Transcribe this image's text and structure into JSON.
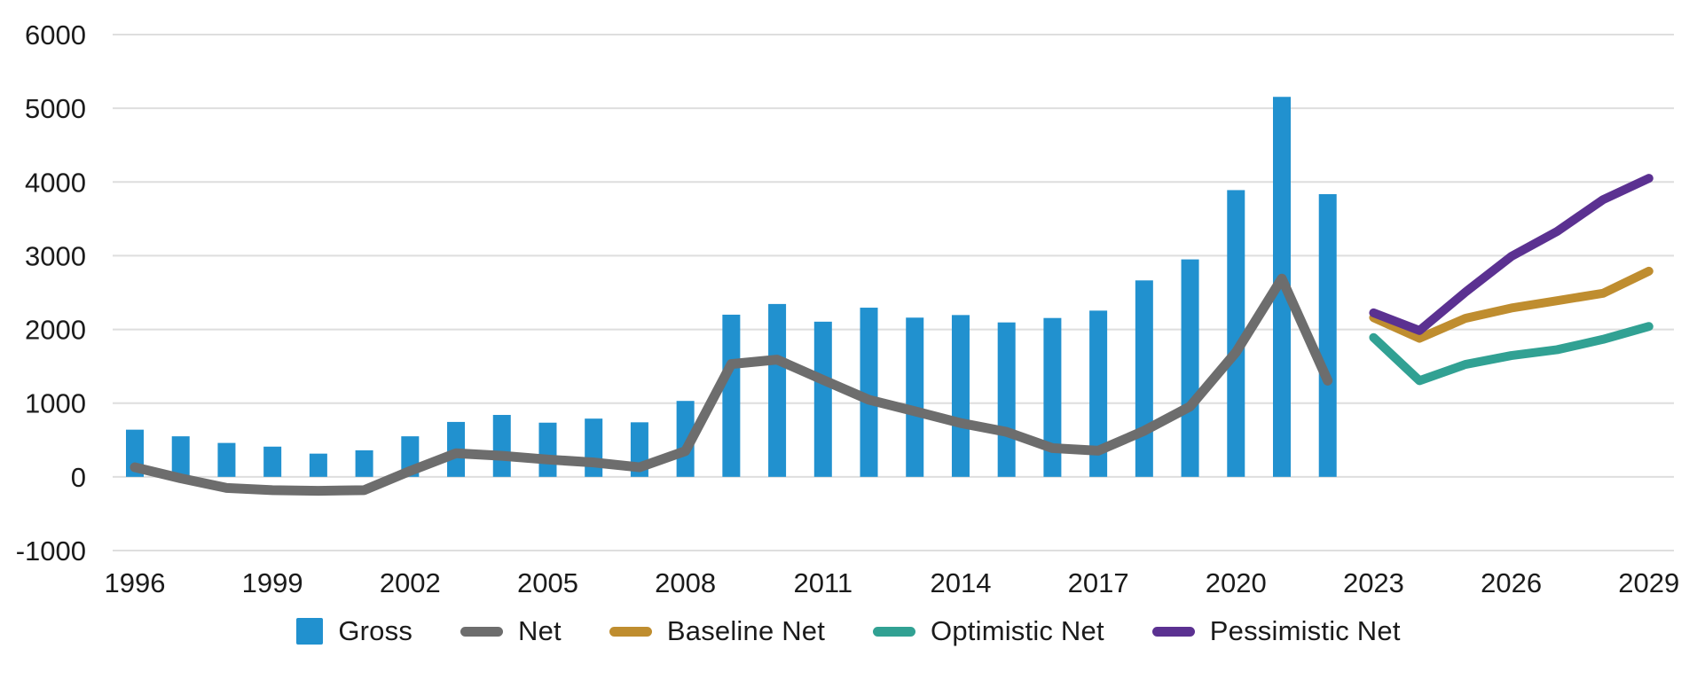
{
  "chart_data": {
    "type": "bar",
    "subtype": "bar-line-combo",
    "title": "",
    "xlabel": "",
    "ylabel": "",
    "ylim": [
      -1000,
      6000
    ],
    "y_ticks": [
      6000,
      5000,
      4000,
      3000,
      2000,
      1000,
      0,
      -1000
    ],
    "x_ticks": [
      1996,
      1999,
      2002,
      2005,
      2008,
      2011,
      2014,
      2017,
      2020,
      2023,
      2026,
      2029
    ],
    "grid": true,
    "legend_position": "bottom",
    "background_color": "#FFFFFF",
    "grid_color": "#DEDEDE",
    "text_color": "#1B1B1B",
    "series": [
      {
        "name": "Gross",
        "kind": "bar",
        "color": "#2191CF",
        "years": [
          1996,
          1997,
          1998,
          1999,
          2000,
          2001,
          2002,
          2003,
          2004,
          2005,
          2006,
          2007,
          2008,
          2009,
          2010,
          2011,
          2012,
          2013,
          2014,
          2015,
          2016,
          2017,
          2018,
          2019,
          2020,
          2021,
          2022
        ],
        "values": [
          640,
          550,
          460,
          410,
          315,
          360,
          550,
          745,
          840,
          735,
          790,
          740,
          1030,
          2200,
          2345,
          2105,
          2295,
          2160,
          2195,
          2095,
          2155,
          2255,
          2665,
          2950,
          3890,
          5155,
          3835
        ]
      },
      {
        "name": "Net",
        "kind": "line",
        "color": "#6D6D6D",
        "years": [
          1996,
          1997,
          1998,
          1999,
          2000,
          2001,
          2002,
          2003,
          2004,
          2005,
          2006,
          2007,
          2008,
          2009,
          2010,
          2011,
          2012,
          2013,
          2014,
          2015,
          2016,
          2017,
          2018,
          2019,
          2020,
          2021,
          2022
        ],
        "values": [
          130,
          -20,
          -150,
          -180,
          -190,
          -180,
          80,
          320,
          285,
          235,
          195,
          130,
          350,
          1530,
          1590,
          1315,
          1045,
          890,
          730,
          610,
          390,
          355,
          625,
          955,
          1690,
          2690,
          1305
        ]
      },
      {
        "name": "Baseline Net",
        "kind": "line",
        "color": "#BF8D2F",
        "years": [
          2023,
          2024,
          2025,
          2026,
          2027,
          2028,
          2029
        ],
        "values": [
          2160,
          1880,
          2150,
          2290,
          2390,
          2490,
          2790
        ]
      },
      {
        "name": "Optimistic Net",
        "kind": "line",
        "color": "#31A193",
        "years": [
          2023,
          2024,
          2025,
          2026,
          2027,
          2028,
          2029
        ],
        "values": [
          1890,
          1305,
          1525,
          1645,
          1725,
          1865,
          2040
        ]
      },
      {
        "name": "Pessimistic Net",
        "kind": "line",
        "color": "#5B3191",
        "years": [
          2023,
          2024,
          2025,
          2026,
          2027,
          2028,
          2029
        ],
        "values": [
          2225,
          1985,
          2505,
          2990,
          3330,
          3760,
          4050
        ]
      }
    ]
  }
}
